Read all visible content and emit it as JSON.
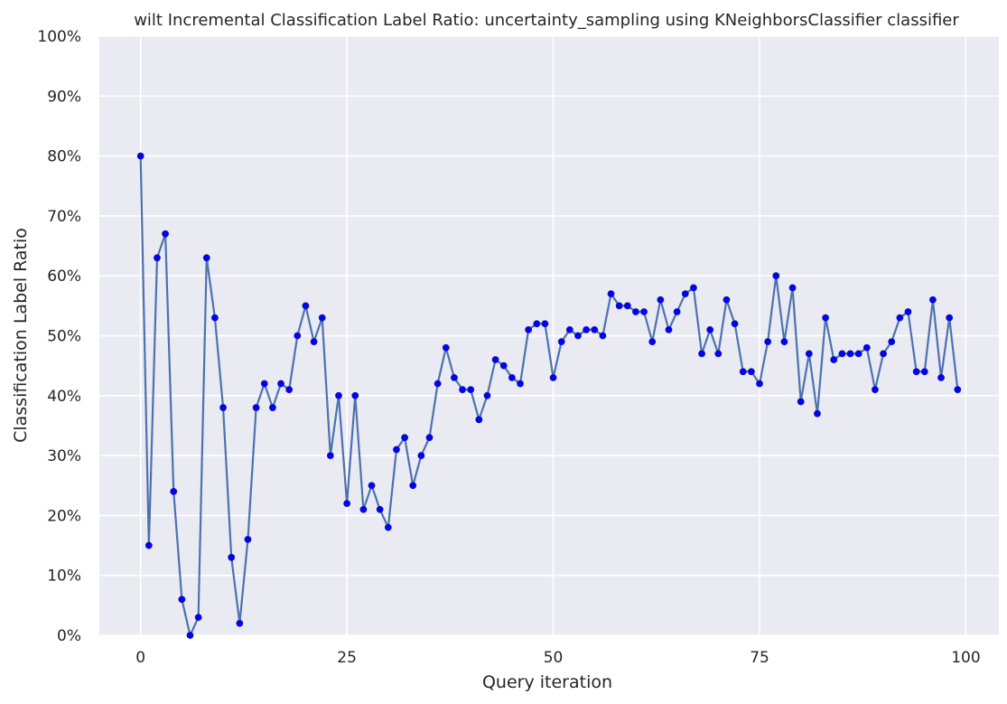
{
  "chart_data": {
    "type": "line",
    "title": "wilt Incremental Classification Label Ratio: uncertainty_sampling using KNeighborsClassifier classifier",
    "xlabel": "Query iteration",
    "ylabel": "Classification Label Ratio",
    "xlim": [
      -5,
      104
    ],
    "ylim": [
      0,
      100
    ],
    "x_ticks": [
      0,
      25,
      50,
      75,
      100
    ],
    "x_tick_labels": [
      "0",
      "25",
      "50",
      "75",
      "100"
    ],
    "y_ticks": [
      0,
      10,
      20,
      30,
      40,
      50,
      60,
      70,
      80,
      90,
      100
    ],
    "y_tick_labels": [
      "0%",
      "10%",
      "20%",
      "30%",
      "40%",
      "50%",
      "60%",
      "70%",
      "80%",
      "90%",
      "100%"
    ],
    "grid": true,
    "line_color": "#4c72b0",
    "marker_color": "#0000ff",
    "background_color": "#eaeaf2",
    "x": [
      0,
      1,
      2,
      3,
      4,
      5,
      6,
      7,
      8,
      9,
      10,
      11,
      12,
      13,
      14,
      15,
      16,
      17,
      18,
      19,
      20,
      21,
      22,
      23,
      24,
      25,
      26,
      27,
      28,
      29,
      30,
      31,
      32,
      33,
      34,
      35,
      36,
      37,
      38,
      39,
      40,
      41,
      42,
      43,
      44,
      45,
      46,
      47,
      48,
      49,
      50,
      51,
      52,
      53,
      54,
      55,
      56,
      57,
      58,
      59,
      60,
      61,
      62,
      63,
      64,
      65,
      66,
      67,
      68,
      69,
      70,
      71,
      72,
      73,
      74,
      75,
      76,
      77,
      78,
      79,
      80,
      81,
      82,
      83,
      84,
      85,
      86,
      87,
      88,
      89,
      90,
      91,
      92,
      93,
      94,
      95,
      96,
      97,
      98,
      99
    ],
    "y": [
      80,
      15,
      63,
      67,
      24,
      6,
      0,
      3,
      63,
      53,
      38,
      13,
      2,
      16,
      38,
      42,
      38,
      42,
      41,
      50,
      55,
      49,
      53,
      30,
      40,
      22,
      40,
      21,
      25,
      21,
      18,
      31,
      33,
      25,
      30,
      33,
      42,
      48,
      43,
      41,
      41,
      36,
      40,
      46,
      45,
      43,
      42,
      51,
      52,
      52,
      43,
      49,
      51,
      50,
      51,
      51,
      50,
      57,
      55,
      55,
      54,
      54,
      49,
      56,
      51,
      54,
      57,
      58,
      47,
      51,
      47,
      56,
      52,
      44,
      44,
      42,
      49,
      60,
      49,
      58,
      39,
      47,
      37,
      53,
      46,
      47,
      47,
      47,
      48,
      41,
      47,
      49,
      53,
      54,
      44,
      44,
      56,
      43,
      53,
      41
    ]
  }
}
